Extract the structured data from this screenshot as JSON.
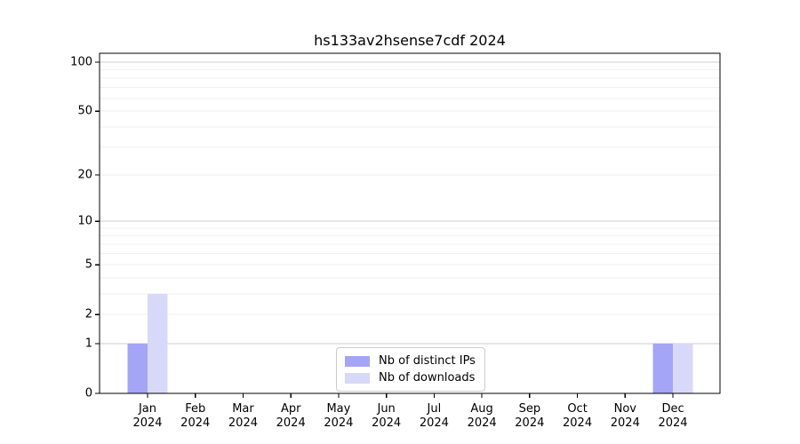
{
  "chart_data": {
    "type": "bar",
    "title": "hs133av2hsense7cdf 2024",
    "categories": [
      "Jan",
      "Feb",
      "Mar",
      "Apr",
      "May",
      "Jun",
      "Jul",
      "Aug",
      "Sep",
      "Oct",
      "Nov",
      "Dec"
    ],
    "x_tick_year": "2024",
    "series": [
      {
        "name": "Nb of distinct IPs",
        "color": "#a5a5f5",
        "values": [
          1,
          0,
          0,
          0,
          0,
          0,
          0,
          0,
          0,
          0,
          0,
          1
        ]
      },
      {
        "name": "Nb of downloads",
        "color": "#d8d8f8",
        "values": [
          3,
          0,
          0,
          0,
          0,
          0,
          0,
          0,
          0,
          0,
          0,
          1
        ]
      }
    ],
    "yscale": "log1p",
    "ylim": [
      0,
      113
    ],
    "ytick_values": [
      100,
      50,
      20,
      10,
      5,
      2,
      1,
      0
    ],
    "grid": {
      "minor_values": [
        2,
        3,
        4,
        5,
        6,
        7,
        8,
        9,
        20,
        30,
        40,
        50,
        60,
        70,
        80,
        90
      ],
      "major_values": [
        1,
        10,
        100
      ],
      "minor_color": "#efefef",
      "major_color": "#cccccc"
    },
    "legend_position": "bottom-center",
    "axis_color": "#000000",
    "tick_label_color": "#000000"
  }
}
